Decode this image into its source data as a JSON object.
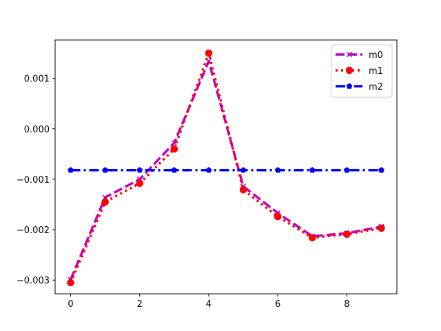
{
  "chart_data": {
    "type": "line",
    "title": "",
    "xlabel": "",
    "ylabel": "",
    "xlim": [
      -0.45,
      9.45
    ],
    "ylim": [
      -0.00327,
      0.00176
    ],
    "x_ticks": [
      0,
      2,
      4,
      6,
      8
    ],
    "x_tick_labels": [
      "0",
      "2",
      "4",
      "6",
      "8"
    ],
    "y_ticks": [
      -0.003,
      -0.002,
      -0.001,
      0.0,
      0.001
    ],
    "y_tick_labels": [
      "−0.003",
      "−0.002",
      "−0.001",
      "0.000",
      "0.001"
    ],
    "grid": false,
    "legend_position": "top-right",
    "x": [
      0,
      1,
      2,
      3,
      4,
      5,
      6,
      7,
      8,
      9
    ],
    "series": [
      {
        "name": "m0",
        "color": "#bf00bf",
        "line_style": "dashed",
        "marker": "x",
        "values": [
          -0.00299,
          -0.00136,
          -0.001,
          -0.00028,
          0.00134,
          -0.00114,
          -0.00167,
          -0.00213,
          -0.00207,
          -0.00194
        ]
      },
      {
        "name": "m1",
        "color": "#ff0000",
        "line_style": "dotted",
        "marker": "octagon",
        "values": [
          -0.00305,
          -0.00145,
          -0.00108,
          -0.0004,
          0.0015,
          -0.00121,
          -0.00174,
          -0.00216,
          -0.00209,
          -0.00197
        ]
      },
      {
        "name": "m2",
        "color": "#0000ff",
        "line_style": "dashdot",
        "marker": "pentagon",
        "values": [
          -0.00082,
          -0.00082,
          -0.00082,
          -0.00082,
          -0.00082,
          -0.00082,
          -0.00082,
          -0.00082,
          -0.00082,
          -0.00082
        ]
      }
    ]
  }
}
